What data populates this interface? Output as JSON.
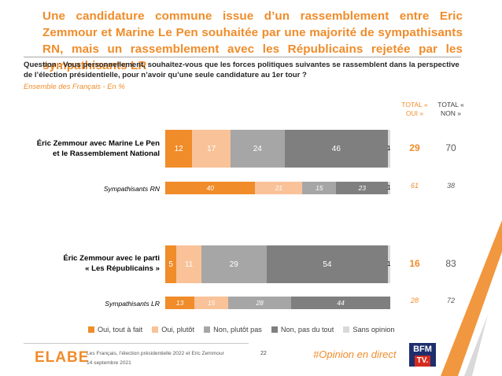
{
  "title": "Une candidature commune issue d’un rassemblement entre Eric Zemmour et Marine Le Pen souhaitée par une majorité de sympathisants RN, mais un rassemblement avec les Républicains rejetée par les sympathisants LR",
  "question": "Question : Vous personnellement, souhaitez-vous que les forces politiques suivantes se rassemblent dans la perspective de l’élection présidentielle, pour n’avoir qu’une seule candidature au 1er tour ?",
  "subtitle": "Ensemble des Français - En %",
  "total_oui_header": "TOTAL « OUI »",
  "total_non_header": "TOTAL « NON »",
  "colors": {
    "accent": "#f08c2a",
    "oui_tout_a_fait": "#f08c2a",
    "oui_plutot": "#f9c298",
    "non_plutot_pas": "#a6a6a6",
    "non_pas_du_tout": "#7f7f7f",
    "sans_opinion": "#d9d9d9"
  },
  "chart_data": {
    "type": "bar",
    "orientation": "horizontal",
    "stacked": true,
    "unit": "%",
    "series_names": [
      "Oui, tout à fait",
      "Oui, plutôt",
      "Non, plutôt pas",
      "Non, pas du tout",
      "Sans opinion"
    ],
    "rows": [
      {
        "label_line1": "Éric Zemmour avec Marine Le Pen",
        "label_line2": "et le Rassemblement National",
        "sub": false,
        "values": [
          12,
          17,
          24,
          46,
          1
        ],
        "total_oui": "29",
        "total_non": "70"
      },
      {
        "label_line1": "Sympathisants RN",
        "label_line2": "",
        "sub": true,
        "values": [
          40,
          21,
          15,
          23,
          1
        ],
        "total_oui": "61",
        "total_non": "38"
      },
      {
        "label_line1": "Éric Zemmour avec le parti",
        "label_line2": "« Les Républicains »",
        "sub": false,
        "values": [
          5,
          11,
          29,
          54,
          1
        ],
        "total_oui": "16",
        "total_non": "83"
      },
      {
        "label_line1": "Sympathisants LR",
        "label_line2": "",
        "sub": true,
        "values": [
          13,
          15,
          28,
          44,
          0
        ],
        "total_oui": "28",
        "total_non": "72"
      }
    ]
  },
  "footer": {
    "logo": "ELABE",
    "source_line1": "Les Français, l’élection présidentielle 2022 et Eric Zemmour",
    "source_line2": "14 septembre 2021",
    "page": "22",
    "hashtag": "#Opinion en direct",
    "bfm_top": "BFM",
    "bfm_bottom": "TV."
  }
}
